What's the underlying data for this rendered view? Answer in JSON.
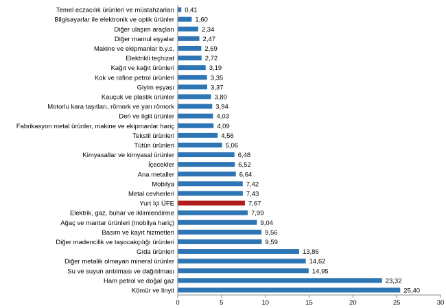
{
  "chart_data": {
    "type": "bar",
    "orientation": "horizontal",
    "categories": [
      "Temel eczacılık ürünleri ve müstahzarları",
      "Bilgisayarlar ile elektronik ve optik ürünler",
      "Diğer ulaşım araçları",
      "Diğer mamul eşyalar",
      "Makine ve ekipmanlar b.y.s.",
      "Elektrikli teçhizat",
      "Kağıt ve kağıt ürünleri",
      "Kok ve rafine petrol ürünleri",
      "Giyim eşyası",
      "Kauçuk ve plastik ürünler",
      "Motorlu kara taşıtları, römork ve yarı römork",
      "Deri ve ilgili ürünler",
      "Fabrikasyon metal ürünler, makine ve ekipmanlar hariç",
      "Tekstil ürünleri",
      "Tütün ürünleri",
      "Kimyasallar ve kimyasal ürünler",
      "İçecekler",
      "Ana metaller",
      "Mobilya",
      "Metal cevherleri",
      "Yurt İçi ÜFE",
      "Elektrik, gaz, buhar ve iklimlendirme",
      "Ağaç ve mantar ürünleri (mobilya hariç)",
      "Basım ve kayıt hizmetleri",
      "Diğer madencilik ve taşocakçılığı ürünleri",
      "Gıda ürünleri",
      "Diğer metalik olmayan mineral ürünler",
      "Su ve suyun arıtılması ve dağıtılması",
      "Ham petrol ve doğal gaz",
      "Kömür ve linyit"
    ],
    "values": [
      0.41,
      1.6,
      2.34,
      2.47,
      2.69,
      2.72,
      3.19,
      3.35,
      3.37,
      3.8,
      3.94,
      4.03,
      4.09,
      4.56,
      5.06,
      6.48,
      6.52,
      6.64,
      7.42,
      7.43,
      7.67,
      7.99,
      9.04,
      9.56,
      9.59,
      13.86,
      14.62,
      14.95,
      23.32,
      25.4
    ],
    "data_labels": [
      "0,41",
      "1,60",
      "2,34",
      "2,47",
      "2,69",
      "2,72",
      "3,19",
      "3,35",
      "3,37",
      "3,80",
      "3,94",
      "4,03",
      "4,09",
      "4,56",
      "5,06",
      "6,48",
      "6,52",
      "6,64",
      "7,42",
      "7,43",
      "7,67",
      "7,99",
      "9,04",
      "9,56",
      "9,59",
      "13,86",
      "14,62",
      "14,95",
      "23,32",
      "25,40"
    ],
    "highlight_category": "Yurt İçi ÜFE",
    "colors": {
      "bar": "#2e75b6",
      "highlight": "#b01c1c"
    },
    "xlim": [
      0,
      30
    ],
    "xticks": [
      "0",
      "5",
      "10",
      "15",
      "20",
      "25",
      "30"
    ],
    "grid": false,
    "legend": "none"
  }
}
